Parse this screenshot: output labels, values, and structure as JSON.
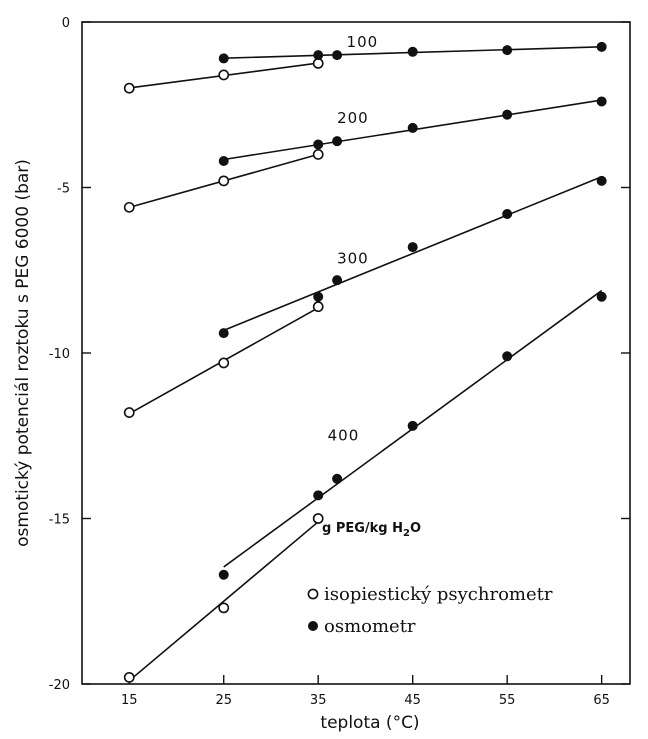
{
  "chart_data": {
    "type": "line",
    "xlabel": "teplota (°C)",
    "ylabel": "osmotický potenciál roztoku s PEG 6000 (bar)",
    "xlim": [
      10,
      68
    ],
    "ylim": [
      -20,
      0
    ],
    "x_ticks": [
      15,
      25,
      35,
      45,
      55,
      65
    ],
    "y_ticks": [
      0,
      -5,
      -10,
      -15,
      -20
    ],
    "unit_annotation": {
      "main": "g PEG/kg H",
      "sub": "2",
      "tail": "O"
    },
    "legend": [
      {
        "marker": "open-circle",
        "label": "isopiestický psychrometr"
      },
      {
        "marker": "filled-circle",
        "label": "osmometr"
      }
    ],
    "groups": [
      {
        "concentration": "100",
        "label_at": [
          38,
          -0.75
        ],
        "psychrometer": {
          "x": [
            15,
            25,
            35
          ],
          "y": [
            -2.0,
            -1.6,
            -1.25
          ]
        },
        "osmometer": {
          "x": [
            25,
            35,
            37,
            45,
            55,
            65
          ],
          "y": [
            -1.1,
            -1.0,
            -1.0,
            -0.9,
            -0.85,
            -0.75
          ]
        }
      },
      {
        "concentration": "200",
        "label_at": [
          37,
          -3.05
        ],
        "psychrometer": {
          "x": [
            15,
            25,
            35
          ],
          "y": [
            -5.6,
            -4.8,
            -4.0
          ]
        },
        "osmometer": {
          "x": [
            25,
            35,
            37,
            45,
            55,
            65
          ],
          "y": [
            -4.2,
            -3.7,
            -3.6,
            -3.2,
            -2.8,
            -2.4
          ]
        }
      },
      {
        "concentration": "300",
        "label_at": [
          37,
          -7.3
        ],
        "psychrometer": {
          "x": [
            15,
            25,
            35
          ],
          "y": [
            -11.8,
            -10.3,
            -8.6
          ]
        },
        "osmometer": {
          "x": [
            25,
            35,
            37,
            45,
            55,
            65
          ],
          "y": [
            -9.4,
            -8.3,
            -7.8,
            -6.8,
            -5.8,
            -4.8
          ]
        }
      },
      {
        "concentration": "400",
        "label_at": [
          36,
          -12.65
        ],
        "psychrometer": {
          "x": [
            15,
            25,
            35
          ],
          "y": [
            -19.8,
            -17.7,
            -15.0
          ]
        },
        "osmometer": {
          "x": [
            25,
            35,
            37,
            45,
            55,
            65
          ],
          "y": [
            -16.7,
            -14.3,
            -13.8,
            -12.2,
            -10.1,
            -8.3
          ]
        }
      }
    ]
  }
}
